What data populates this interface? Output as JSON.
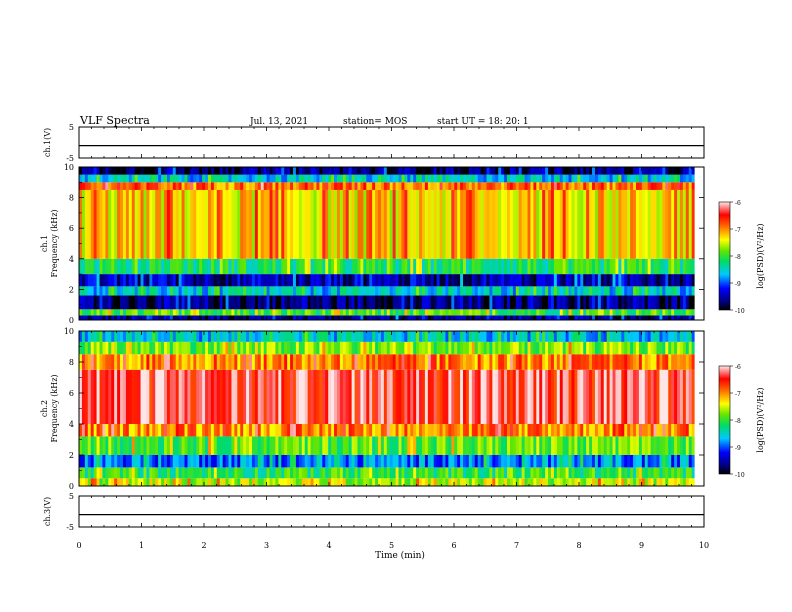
{
  "header": {
    "title": "VLF Spectra",
    "date": "Jul. 13, 2021",
    "station": "station= MOS",
    "start": "start UT = 18: 20: 1"
  },
  "chart_data": [
    {
      "panel": "ch1_voltage",
      "type": "line",
      "ylabel": "ch.1(V)",
      "ylim": [
        -5,
        5
      ],
      "yticks": [
        "5",
        "-5"
      ],
      "x": [
        0,
        10
      ],
      "y": [
        -1,
        -1
      ]
    },
    {
      "panel": "ch1_spectrogram",
      "type": "heatmap",
      "ylabel_top": "ch.1",
      "ylabel": "Frequency (kHz)",
      "ylim": [
        0,
        10
      ],
      "yticks": [
        "0",
        "2",
        "4",
        "6",
        "8",
        "10"
      ],
      "xlim": [
        0,
        10
      ],
      "data_end_x": 9.85,
      "colorbar": {
        "label": "log(PSD)(V²/Hz)",
        "ticks": [
          "-6",
          "-7",
          "-8",
          "-9",
          "-10"
        ],
        "range": [
          -10,
          -6
        ]
      },
      "bands": [
        {
          "f": [
            0.0,
            0.3
          ],
          "psd": -9.6
        },
        {
          "f": [
            0.3,
            0.7
          ],
          "psd": -8.0
        },
        {
          "f": [
            0.7,
            1.6
          ],
          "psd": -9.7
        },
        {
          "f": [
            1.6,
            2.2
          ],
          "psd": -8.6
        },
        {
          "f": [
            2.2,
            3.0
          ],
          "psd": -9.5
        },
        {
          "f": [
            3.0,
            4.0
          ],
          "psd": -8.2
        },
        {
          "f": [
            4.0,
            8.5
          ],
          "psd": -7.3
        },
        {
          "f": [
            8.5,
            9.0
          ],
          "psd": -6.9
        },
        {
          "f": [
            9.0,
            9.5
          ],
          "psd": -8.6
        },
        {
          "f": [
            9.5,
            10.0
          ],
          "psd": -9.7
        }
      ]
    },
    {
      "panel": "ch2_spectrogram",
      "type": "heatmap",
      "ylabel_top": "ch.2",
      "ylabel": "Frequency (kHz)",
      "ylim": [
        0,
        10
      ],
      "yticks": [
        "0",
        "2",
        "4",
        "6",
        "8",
        "10"
      ],
      "xlim": [
        0,
        10
      ],
      "data_end_x": 9.85,
      "colorbar": {
        "label": "log(PSD)(V²/Hz)",
        "ticks": [
          "-6",
          "-7",
          "-8",
          "-9",
          "-10"
        ],
        "range": [
          -10,
          -6
        ]
      },
      "bands": [
        {
          "f": [
            0.0,
            0.5
          ],
          "psd": -7.6
        },
        {
          "f": [
            0.5,
            1.2
          ],
          "psd": -8.1
        },
        {
          "f": [
            1.2,
            2.0
          ],
          "psd": -8.9
        },
        {
          "f": [
            2.0,
            3.2
          ],
          "psd": -7.9
        },
        {
          "f": [
            3.2,
            4.0
          ],
          "psd": -7.0
        },
        {
          "f": [
            4.0,
            7.5
          ],
          "psd": -6.4
        },
        {
          "f": [
            7.5,
            8.5
          ],
          "psd": -7.0
        },
        {
          "f": [
            8.5,
            9.3
          ],
          "psd": -7.8
        },
        {
          "f": [
            9.3,
            10.0
          ],
          "psd": -8.6
        }
      ]
    },
    {
      "panel": "ch3_voltage",
      "type": "line",
      "ylabel": "ch.3(V)",
      "ylim": [
        -5,
        5
      ],
      "yticks": [
        "5",
        "-5"
      ],
      "x": [
        0,
        10
      ],
      "y": [
        -1,
        -1
      ]
    }
  ],
  "x_axis": {
    "label": "Time (min)",
    "ticks": [
      "0",
      "1",
      "2",
      "3",
      "4",
      "5",
      "6",
      "7",
      "8",
      "9",
      "10"
    ],
    "range": [
      0,
      10
    ]
  }
}
